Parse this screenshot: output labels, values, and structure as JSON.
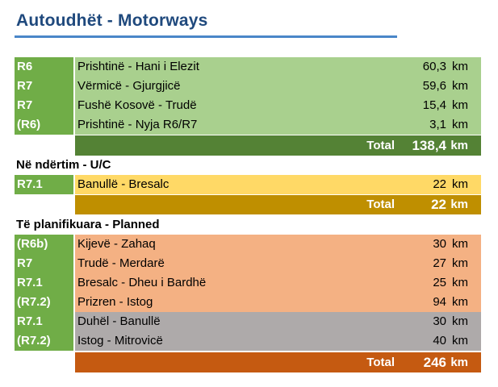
{
  "title": "Autoudhët - Motorways",
  "existing": {
    "rows": [
      {
        "code": "R6",
        "name": "Prishtinë - Hani i Elezit",
        "km": "60,3",
        "unit": "km"
      },
      {
        "code": "R7",
        "name": "Vërmicë - Gjurgjicë",
        "km": "59,6",
        "unit": "km"
      },
      {
        "code": "R7",
        "name": "Fushë Kosovë - Trudë",
        "km": "15,4",
        "unit": "km"
      },
      {
        "code": "(R6)",
        "name": "Prishtinë - Nyja R6/R7",
        "km": "3,1",
        "unit": "km"
      }
    ],
    "total_label": "Total",
    "total_value": "138,4",
    "total_unit": "km"
  },
  "under_construction": {
    "heading": "Në ndërtim - U/C",
    "rows": [
      {
        "code": "R7.1",
        "name": "Banullë - Bresalc",
        "km": "22",
        "unit": "km"
      }
    ],
    "total_label": "Total",
    "total_value": "22",
    "total_unit": "km"
  },
  "planned": {
    "heading": "Të planifikuara - Planned",
    "rows": [
      {
        "code": "(R6b)",
        "name": "Kijevë - Zahaq",
        "km": "30",
        "unit": "km"
      },
      {
        "code": "R7",
        "name": "Trudë - Merdarë",
        "km": "27",
        "unit": "km"
      },
      {
        "code": "R7.1",
        "name": "Bresalc - Dheu i Bardhë",
        "km": "25",
        "unit": "km"
      },
      {
        "code": "(R7.2)",
        "name": "Prizren - Istog",
        "km": "94",
        "unit": "km"
      },
      {
        "code": "R7.1",
        "name": "Duhël - Banullë",
        "km": "30",
        "unit": "km"
      },
      {
        "code": "(R7.2)",
        "name": "Istog - Mitrovicë",
        "km": "40",
        "unit": "km"
      }
    ],
    "total_label": "Total",
    "total_value": "246",
    "total_unit": "km"
  },
  "colors": {
    "code": "#70ad47",
    "existing": "#a9d08e",
    "existing_total": "#548235",
    "uc": "#ffd966",
    "uc_total": "#bf8f00",
    "planned": "#f4b183",
    "planned_gray": "#aeaaaa",
    "planned_total": "#c55a11",
    "title": "#1f497d"
  }
}
